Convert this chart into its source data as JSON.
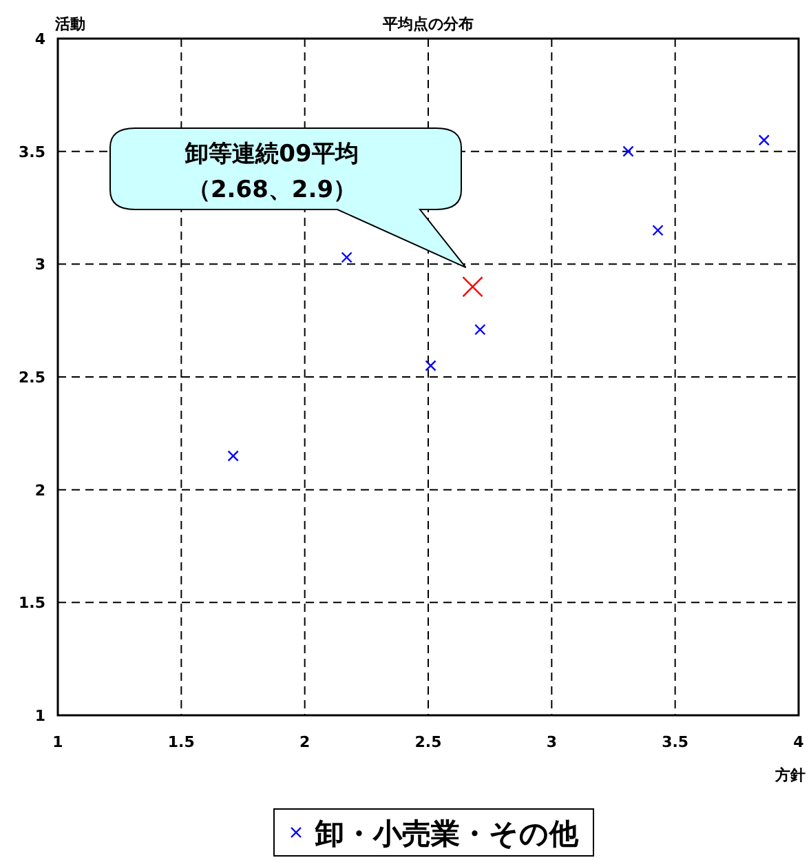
{
  "chart_data": {
    "type": "scatter",
    "title": "平均点の分布",
    "xlabel": "方針",
    "ylabel": "活動",
    "xlim": [
      1,
      4
    ],
    "ylim": [
      1,
      4
    ],
    "xticks": [
      1,
      1.5,
      2,
      2.5,
      3,
      3.5,
      4
    ],
    "yticks": [
      1,
      1.5,
      2,
      2.5,
      3,
      3.5,
      4
    ],
    "grid": true,
    "legend": "bottom",
    "marker": "cross",
    "series": [
      {
        "name": "卸・小売業・その他",
        "color": "#0000ff",
        "x": [
          1.71,
          2.17,
          2.51,
          2.71,
          3.31,
          3.43,
          3.86
        ],
        "values": [
          2.15,
          3.03,
          2.55,
          2.71,
          3.5,
          3.15,
          3.55
        ]
      },
      {
        "color": "#ff0000",
        "x": [
          2.68
        ],
        "values": [
          2.9
        ]
      }
    ],
    "annotations": [
      "卸等連続09平均",
      "（2.68、2.9）"
    ]
  }
}
